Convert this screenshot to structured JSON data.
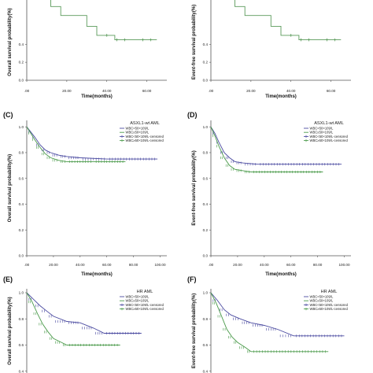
{
  "chart_data": [
    {
      "panel": "",
      "type": "line",
      "title": "",
      "xlabel": "Time(months)",
      "ylabel": "Overall survival probability(%)",
      "xticks": [
        ".00",
        "20.00",
        "40.00",
        "60.00"
      ],
      "yticks": [
        "0.4",
        "0.2",
        "0.0"
      ],
      "xlim": [
        0,
        70
      ],
      "ylim": [
        0,
        1.05
      ],
      "legend": [],
      "series": [
        {
          "name": "",
          "color": "#5a9a5a",
          "step": [
            [
              0,
              1.05
            ],
            [
              8,
              1.05
            ],
            [
              8,
              0.92
            ],
            [
              12,
              0.92
            ],
            [
              12,
              0.82
            ],
            [
              17,
              0.82
            ],
            [
              17,
              0.72
            ],
            [
              30,
              0.72
            ],
            [
              30,
              0.6
            ],
            [
              35,
              0.6
            ],
            [
              35,
              0.5
            ],
            [
              44,
              0.5
            ],
            [
              44,
              0.45
            ],
            [
              65,
              0.45
            ]
          ],
          "censored": [
            40,
            45,
            49,
            58,
            62
          ]
        }
      ]
    },
    {
      "panel": "",
      "type": "line",
      "title": "",
      "xlabel": "Time(months)",
      "ylabel": "Event-free survival probability(%)",
      "xticks": [
        ".00",
        "20.00",
        "40.00",
        "60.00"
      ],
      "yticks": [
        "0.4",
        "0.2",
        "0.0"
      ],
      "xlim": [
        0,
        70
      ],
      "ylim": [
        0,
        1.05
      ],
      "legend": [],
      "series": [
        {
          "name": "",
          "color": "#5a9a5a",
          "step": [
            [
              0,
              1.05
            ],
            [
              8,
              1.05
            ],
            [
              8,
              0.92
            ],
            [
              12,
              0.92
            ],
            [
              12,
              0.82
            ],
            [
              17,
              0.82
            ],
            [
              17,
              0.72
            ],
            [
              30,
              0.72
            ],
            [
              30,
              0.6
            ],
            [
              35,
              0.6
            ],
            [
              35,
              0.5
            ],
            [
              44,
              0.5
            ],
            [
              44,
              0.45
            ],
            [
              65,
              0.45
            ]
          ],
          "censored": [
            40,
            45,
            49,
            58,
            62
          ]
        }
      ]
    },
    {
      "panel": "(C)",
      "type": "line",
      "title": "ASXL1-wt AML",
      "xlabel": "Time(months)",
      "ylabel": "Overall survival probability(%)",
      "xticks": [
        ".00",
        "20.00",
        "40.00",
        "60.00",
        "80.00",
        "100.00"
      ],
      "yticks": [
        "1.0",
        "0.8",
        "0.6",
        "0.4",
        "0.2",
        "0.0"
      ],
      "xlim": [
        0,
        105
      ],
      "ylim": [
        0,
        1.05
      ],
      "legend": [
        "WBC<50×109/L",
        "WBC≥50×109/L",
        "WBC<50×109/L-censored",
        "WBC≥50×109/L-censored"
      ],
      "series": [
        {
          "name": "WBC<50×109/L",
          "color": "#4a4aa0",
          "step": [
            [
              0,
              1.0
            ],
            [
              3,
              0.96
            ],
            [
              6,
              0.92
            ],
            [
              10,
              0.86
            ],
            [
              14,
              0.82
            ],
            [
              18,
              0.8
            ],
            [
              24,
              0.78
            ],
            [
              30,
              0.77
            ],
            [
              40,
              0.76
            ],
            [
              60,
              0.75
            ],
            [
              98,
              0.75
            ]
          ]
        },
        {
          "name": "WBC≥50×109/L",
          "color": "#4a9a4a",
          "step": [
            [
              0,
              1.0
            ],
            [
              3,
              0.95
            ],
            [
              6,
              0.9
            ],
            [
              10,
              0.84
            ],
            [
              14,
              0.79
            ],
            [
              18,
              0.76
            ],
            [
              24,
              0.74
            ],
            [
              30,
              0.73
            ],
            [
              50,
              0.73
            ],
            [
              74,
              0.73
            ]
          ]
        }
      ]
    },
    {
      "panel": "(D)",
      "type": "line",
      "title": "ASXL1-wt AML",
      "xlabel": "Time(months)",
      "ylabel": "Event-free survival probability(%)",
      "xticks": [
        ".00",
        "20.00",
        "40.00",
        "60.00",
        "80.00",
        "100.00"
      ],
      "yticks": [
        "1.0",
        "0.8",
        "0.6",
        "0.4",
        "0.2",
        "0.0"
      ],
      "xlim": [
        0,
        105
      ],
      "ylim": [
        0,
        1.05
      ],
      "legend": [
        "WBC<50×109/L",
        "WBC≥50×109/L",
        "WBC<50×109/L-censored",
        "WBC≥50×109/L-censored"
      ],
      "series": [
        {
          "name": "WBC<50×109/L",
          "color": "#4a4aa0",
          "step": [
            [
              0,
              1.0
            ],
            [
              3,
              0.95
            ],
            [
              6,
              0.88
            ],
            [
              10,
              0.8
            ],
            [
              14,
              0.76
            ],
            [
              18,
              0.73
            ],
            [
              24,
              0.72
            ],
            [
              35,
              0.71
            ],
            [
              98,
              0.71
            ]
          ]
        },
        {
          "name": "WBC≥50×109/L",
          "color": "#4a9a4a",
          "step": [
            [
              0,
              1.0
            ],
            [
              3,
              0.93
            ],
            [
              6,
              0.85
            ],
            [
              10,
              0.76
            ],
            [
              14,
              0.7
            ],
            [
              18,
              0.67
            ],
            [
              24,
              0.66
            ],
            [
              30,
              0.65
            ],
            [
              84,
              0.65
            ]
          ]
        }
      ]
    },
    {
      "panel": "(E)",
      "type": "line",
      "title": "HR AML",
      "xlabel": "",
      "ylabel": "Overall survival probability(%)",
      "xticks": [],
      "yticks": [
        "1.0",
        "0.8",
        "0.6",
        "0.4"
      ],
      "xlim": [
        0,
        105
      ],
      "ylim": [
        0.35,
        1.03
      ],
      "legend": [
        "WBC<50×109/L",
        "WBC≥50×109/L",
        "WBC<50×109/L-censored",
        "WBC≥50×109/L-censored"
      ],
      "series": [
        {
          "name": "WBC<50×109/L",
          "color": "#4a4aa0",
          "step": [
            [
              0,
              1.0
            ],
            [
              5,
              0.95
            ],
            [
              10,
              0.9
            ],
            [
              15,
              0.86
            ],
            [
              20,
              0.82
            ],
            [
              30,
              0.78
            ],
            [
              40,
              0.77
            ],
            [
              50,
              0.73
            ],
            [
              58,
              0.69
            ],
            [
              86,
              0.69
            ]
          ]
        },
        {
          "name": "WBC≥50×109/L",
          "color": "#4a9a4a",
          "step": [
            [
              0,
              1.0
            ],
            [
              4,
              0.93
            ],
            [
              8,
              0.84
            ],
            [
              12,
              0.76
            ],
            [
              16,
              0.7
            ],
            [
              20,
              0.65
            ],
            [
              26,
              0.62
            ],
            [
              30,
              0.6
            ],
            [
              70,
              0.6
            ]
          ]
        }
      ]
    },
    {
      "panel": "(F)",
      "type": "line",
      "title": "HR AML",
      "xlabel": "",
      "ylabel": "Event-free survival probability(%)",
      "xticks": [],
      "yticks": [
        "1.0",
        "0.8",
        "0.6",
        "0.4"
      ],
      "xlim": [
        0,
        105
      ],
      "ylim": [
        0.35,
        1.03
      ],
      "legend": [
        "WBC<50×109/L",
        "WBC≥50×109/L",
        "WBC<50×109/L-censored",
        "WBC≥50×109/L-censored"
      ],
      "series": [
        {
          "name": "WBC<50×109/L",
          "color": "#4a4aa0",
          "step": [
            [
              0,
              1.0
            ],
            [
              5,
              0.94
            ],
            [
              10,
              0.87
            ],
            [
              15,
              0.83
            ],
            [
              22,
              0.8
            ],
            [
              30,
              0.77
            ],
            [
              40,
              0.75
            ],
            [
              50,
              0.72
            ],
            [
              62,
              0.67
            ],
            [
              100,
              0.67
            ]
          ]
        },
        {
          "name": "WBC≥50×109/L",
          "color": "#4a9a4a",
          "step": [
            [
              0,
              1.0
            ],
            [
              4,
              0.92
            ],
            [
              8,
              0.82
            ],
            [
              12,
              0.72
            ],
            [
              16,
              0.66
            ],
            [
              20,
              0.62
            ],
            [
              26,
              0.58
            ],
            [
              30,
              0.55
            ],
            [
              88,
              0.55
            ]
          ]
        }
      ]
    }
  ]
}
